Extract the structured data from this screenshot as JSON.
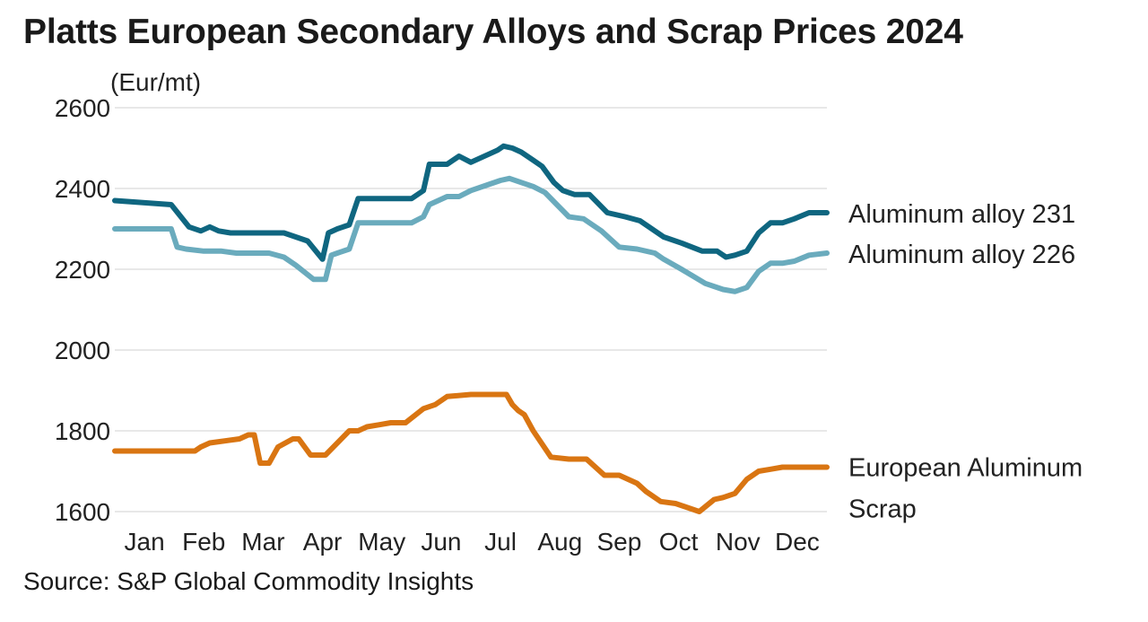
{
  "title": "Platts European Secondary Alloys and Scrap Prices 2024",
  "source": "Source: S&P Global Commodity Insights",
  "chart_data": {
    "type": "line",
    "title": "Platts European Secondary Alloys and Scrap Prices 2024",
    "ylabel": "(Eur/mt)",
    "xlabel": "",
    "ylim": [
      1600,
      2600
    ],
    "yticks": [
      1600,
      1800,
      2000,
      2200,
      2400,
      2600
    ],
    "xlim": [
      0,
      12
    ],
    "month_labels": [
      "Jan",
      "Feb",
      "Mar",
      "Apr",
      "May",
      "Jun",
      "Jul",
      "Aug",
      "Sep",
      "Oct",
      "Nov",
      "Dec"
    ],
    "grid": true,
    "legend": "direct labels at right end of lines",
    "x_unit": "months elapsed since start of January 2024",
    "series": [
      {
        "name": "Aluminum alloy 231",
        "color": "#0f6680",
        "x": [
          0,
          0.95,
          1.25,
          1.45,
          1.6,
          1.75,
          1.95,
          2.15,
          2.35,
          2.6,
          2.85,
          3.25,
          3.5,
          3.6,
          3.75,
          3.95,
          4.1,
          4.3,
          4.5,
          4.75,
          5.0,
          5.2,
          5.3,
          5.6,
          5.8,
          6.0,
          6.3,
          6.45,
          6.55,
          6.7,
          6.85,
          7.05,
          7.2,
          7.4,
          7.55,
          7.75,
          8.0,
          8.3,
          8.6,
          8.85,
          9.05,
          9.25,
          9.55,
          9.9,
          10.15,
          10.3,
          10.45,
          10.65,
          10.85,
          11.05,
          11.25,
          11.45,
          11.7,
          12.0
        ],
        "values": [
          2370,
          2360,
          2305,
          2295,
          2305,
          2295,
          2290,
          2290,
          2290,
          2290,
          2290,
          2270,
          2225,
          2290,
          2300,
          2310,
          2375,
          2375,
          2375,
          2375,
          2375,
          2395,
          2460,
          2460,
          2480,
          2465,
          2485,
          2495,
          2505,
          2500,
          2490,
          2470,
          2455,
          2415,
          2395,
          2385,
          2385,
          2340,
          2330,
          2320,
          2300,
          2280,
          2265,
          2245,
          2245,
          2230,
          2235,
          2245,
          2290,
          2315,
          2315,
          2325,
          2340,
          2340
        ]
      },
      {
        "name": "Aluminum alloy 226",
        "color": "#6aabbd",
        "x": [
          0,
          0.95,
          1.05,
          1.2,
          1.5,
          1.8,
          2.05,
          2.4,
          2.6,
          2.85,
          3.05,
          3.35,
          3.55,
          3.65,
          3.75,
          3.95,
          4.1,
          4.4,
          4.7,
          5.0,
          5.2,
          5.3,
          5.6,
          5.8,
          6.0,
          6.3,
          6.5,
          6.65,
          6.85,
          7.05,
          7.25,
          7.45,
          7.65,
          7.9,
          8.2,
          8.5,
          8.8,
          9.1,
          9.25,
          9.55,
          9.95,
          10.25,
          10.45,
          10.65,
          10.85,
          11.05,
          11.25,
          11.45,
          11.7,
          12.0
        ],
        "values": [
          2300,
          2300,
          2255,
          2250,
          2245,
          2245,
          2240,
          2240,
          2240,
          2230,
          2210,
          2175,
          2175,
          2235,
          2240,
          2250,
          2315,
          2315,
          2315,
          2315,
          2330,
          2360,
          2380,
          2380,
          2395,
          2410,
          2420,
          2425,
          2415,
          2405,
          2390,
          2360,
          2330,
          2325,
          2295,
          2255,
          2250,
          2240,
          2225,
          2200,
          2165,
          2150,
          2145,
          2155,
          2195,
          2215,
          2215,
          2220,
          2235,
          2240
        ]
      },
      {
        "name": "European Aluminum Scrap",
        "color": "#d97512",
        "x": [
          0,
          1.35,
          1.45,
          1.6,
          2.1,
          2.25,
          2.35,
          2.45,
          2.6,
          2.75,
          3.0,
          3.1,
          3.3,
          3.55,
          3.95,
          4.1,
          4.25,
          4.45,
          4.65,
          4.9,
          5.2,
          5.4,
          5.6,
          6.0,
          6.3,
          6.45,
          6.6,
          6.7,
          6.8,
          6.9,
          7.05,
          7.35,
          7.65,
          7.95,
          8.25,
          8.5,
          8.8,
          8.95,
          9.2,
          9.45,
          9.85,
          10.1,
          10.25,
          10.45,
          10.65,
          10.85,
          11.05,
          11.25,
          11.45,
          11.7,
          12.0
        ],
        "values": [
          1750,
          1750,
          1760,
          1770,
          1780,
          1790,
          1790,
          1720,
          1720,
          1760,
          1780,
          1780,
          1740,
          1740,
          1800,
          1800,
          1810,
          1815,
          1820,
          1820,
          1855,
          1865,
          1885,
          1890,
          1890,
          1890,
          1890,
          1865,
          1850,
          1840,
          1800,
          1735,
          1730,
          1730,
          1690,
          1690,
          1670,
          1650,
          1625,
          1620,
          1600,
          1630,
          1635,
          1645,
          1680,
          1700,
          1705,
          1710,
          1710,
          1710,
          1710
        ]
      }
    ]
  }
}
